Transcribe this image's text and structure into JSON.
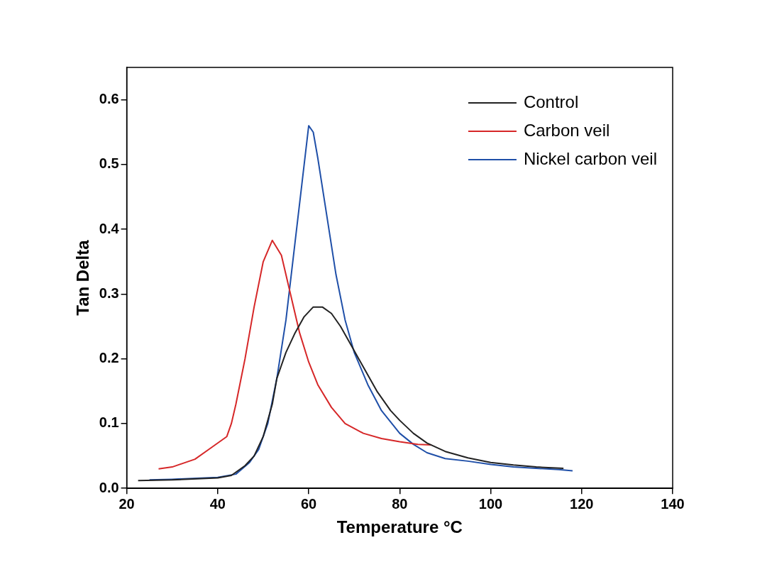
{
  "chart_data": {
    "type": "line",
    "xlabel": "Temperature °C",
    "ylabel": "Tan Delta",
    "xlim": [
      20,
      140
    ],
    "xticks": [
      20,
      40,
      60,
      80,
      100,
      120,
      140
    ],
    "ylim": [
      0,
      0.65
    ],
    "yticks": [
      {
        "value": 0,
        "label": "0.0"
      },
      0.1,
      0.2,
      0.3,
      0.4,
      0.5,
      0.6
    ],
    "legend": "top right",
    "grid": false,
    "marker": "none",
    "series": [
      {
        "name": "Control",
        "color": "#222222",
        "x": [
          22.5,
          30,
          40,
          43,
          46,
          48,
          50,
          52,
          53,
          55,
          57,
          59,
          61,
          63,
          65,
          67,
          69,
          71,
          73,
          75,
          78,
          80,
          83,
          86,
          90,
          95,
          100,
          105,
          110,
          116
        ],
        "values": [
          0.012,
          0.013,
          0.016,
          0.02,
          0.035,
          0.05,
          0.08,
          0.13,
          0.17,
          0.21,
          0.24,
          0.265,
          0.28,
          0.28,
          0.27,
          0.25,
          0.225,
          0.2,
          0.175,
          0.15,
          0.12,
          0.105,
          0.085,
          0.07,
          0.057,
          0.047,
          0.04,
          0.036,
          0.033,
          0.031
        ]
      },
      {
        "name": "Carbon veil",
        "color": "#d62728",
        "x": [
          27,
          30,
          35,
          38,
          42,
          43,
          44,
          46,
          48,
          50,
          52,
          54,
          56,
          58,
          60,
          62,
          65,
          68,
          72,
          76,
          80,
          84,
          87
        ],
        "values": [
          0.03,
          0.033,
          0.045,
          0.06,
          0.08,
          0.1,
          0.13,
          0.2,
          0.28,
          0.35,
          0.383,
          0.36,
          0.3,
          0.24,
          0.195,
          0.16,
          0.125,
          0.1,
          0.085,
          0.077,
          0.072,
          0.068,
          0.067
        ]
      },
      {
        "name": "Nickel carbon veil",
        "color": "#1f4fa8",
        "x": [
          25,
          30,
          40,
          44,
          47,
          49,
          51,
          53,
          55,
          57,
          58.5,
          60,
          61,
          62,
          64,
          66,
          68,
          70,
          73,
          76,
          80,
          83,
          86,
          90,
          95,
          100,
          105,
          110,
          115,
          118
        ],
        "values": [
          0.013,
          0.014,
          0.017,
          0.022,
          0.04,
          0.06,
          0.1,
          0.17,
          0.26,
          0.38,
          0.47,
          0.56,
          0.55,
          0.51,
          0.42,
          0.33,
          0.26,
          0.21,
          0.16,
          0.12,
          0.085,
          0.068,
          0.055,
          0.046,
          0.042,
          0.037,
          0.033,
          0.031,
          0.029,
          0.027
        ]
      }
    ]
  }
}
